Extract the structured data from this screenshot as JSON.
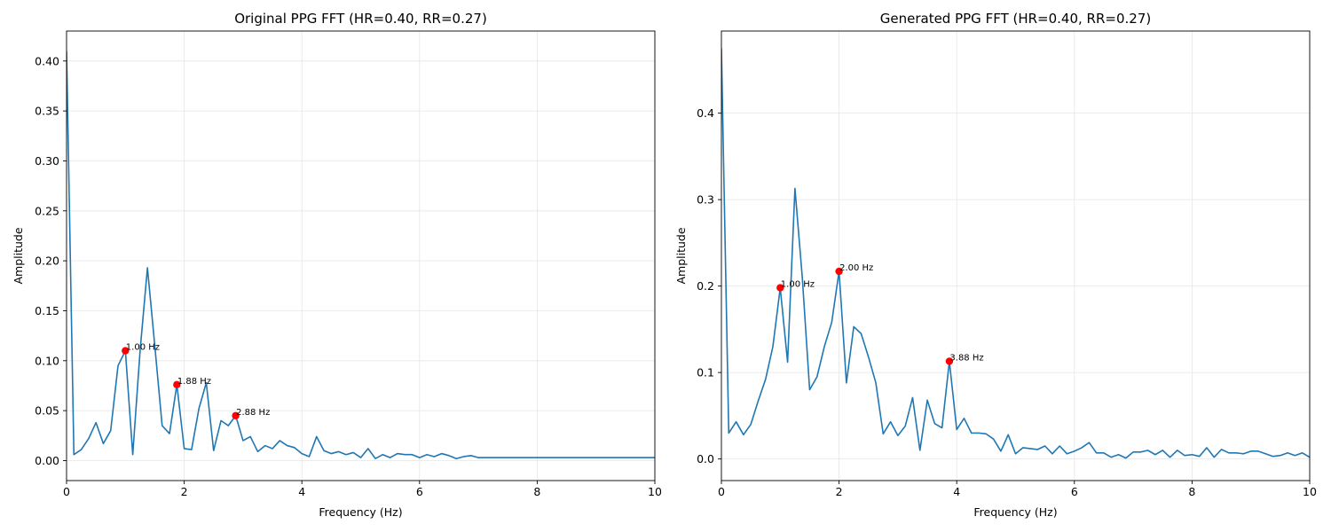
{
  "chart_data": [
    {
      "type": "line",
      "title": "Original PPG FFT (HR=0.40, RR=0.27)",
      "xlabel": "Frequency (Hz)",
      "ylabel": "Amplitude",
      "xlim": [
        0,
        10
      ],
      "ylim": [
        -0.02,
        0.43
      ],
      "xticks": [
        0,
        2,
        4,
        6,
        8,
        10
      ],
      "xtick_labels": [
        "0",
        "2",
        "4",
        "6",
        "8",
        "10"
      ],
      "yticks": [
        0.0,
        0.05,
        0.1,
        0.15,
        0.2,
        0.25,
        0.3,
        0.35,
        0.4
      ],
      "ytick_labels": [
        "0.00",
        "0.05",
        "0.10",
        "0.15",
        "0.20",
        "0.25",
        "0.30",
        "0.35",
        "0.40"
      ],
      "grid": true,
      "line_color": "#1f77b4",
      "marker_color": "#ff0000",
      "series": [
        {
          "x": [
            0,
            0.125,
            0.25,
            0.375,
            0.5,
            0.625,
            0.75,
            0.875,
            1.0,
            1.125,
            1.25,
            1.375,
            1.5,
            1.625,
            1.75,
            1.875,
            2.0,
            2.125,
            2.25,
            2.375,
            2.5,
            2.625,
            2.75,
            2.875,
            3.0,
            3.125,
            3.25,
            3.375,
            3.5,
            3.625,
            3.75,
            3.875,
            4.0,
            4.125,
            4.25,
            4.375,
            4.5,
            4.625,
            4.75,
            4.875,
            5.0,
            5.125,
            5.25,
            5.375,
            5.5,
            5.625,
            5.75,
            5.875,
            6.0,
            6.125,
            6.25,
            6.375,
            6.5,
            6.625,
            6.75,
            6.875,
            7.0,
            7.25,
            7.5,
            7.75,
            8.0,
            8.25,
            8.5,
            8.75,
            9.0,
            9.25,
            9.5,
            9.75,
            10.0
          ],
          "y": [
            0.41,
            0.006,
            0.011,
            0.022,
            0.038,
            0.017,
            0.03,
            0.095,
            0.11,
            0.006,
            0.11,
            0.193,
            0.115,
            0.035,
            0.027,
            0.076,
            0.012,
            0.011,
            0.052,
            0.078,
            0.01,
            0.04,
            0.035,
            0.045,
            0.02,
            0.024,
            0.009,
            0.015,
            0.012,
            0.02,
            0.015,
            0.013,
            0.007,
            0.004,
            0.024,
            0.01,
            0.007,
            0.009,
            0.006,
            0.008,
            0.003,
            0.012,
            0.002,
            0.006,
            0.003,
            0.007,
            0.006,
            0.006,
            0.003,
            0.006,
            0.004,
            0.007,
            0.005,
            0.002,
            0.004,
            0.005,
            0.003,
            0.003,
            0.003,
            0.003,
            0.003,
            0.003,
            0.003,
            0.003,
            0.003,
            0.003,
            0.003,
            0.003,
            0.003
          ]
        }
      ],
      "peaks": [
        {
          "x": 1.0,
          "y": 0.11,
          "label": "1.00 Hz"
        },
        {
          "x": 1.875,
          "y": 0.076,
          "label": "1.88 Hz"
        },
        {
          "x": 2.875,
          "y": 0.045,
          "label": "2.88 Hz"
        }
      ]
    },
    {
      "type": "line",
      "title": "Generated PPG FFT (HR=0.40, RR=0.27)",
      "xlabel": "Frequency (Hz)",
      "ylabel": "Amplitude",
      "xlim": [
        0,
        10
      ],
      "ylim": [
        -0.025,
        0.495
      ],
      "xticks": [
        0,
        2,
        4,
        6,
        8,
        10
      ],
      "xtick_labels": [
        "0",
        "2",
        "4",
        "6",
        "8",
        "10"
      ],
      "yticks": [
        0.0,
        0.1,
        0.2,
        0.3,
        0.4
      ],
      "ytick_labels": [
        "0.0",
        "0.1",
        "0.2",
        "0.3",
        "0.4"
      ],
      "grid": true,
      "line_color": "#1f77b4",
      "marker_color": "#ff0000",
      "series": [
        {
          "x": [
            0,
            0.125,
            0.25,
            0.375,
            0.5,
            0.625,
            0.75,
            0.875,
            1.0,
            1.125,
            1.25,
            1.375,
            1.5,
            1.625,
            1.75,
            1.875,
            2.0,
            2.125,
            2.25,
            2.375,
            2.5,
            2.625,
            2.75,
            2.875,
            3.0,
            3.125,
            3.25,
            3.375,
            3.5,
            3.625,
            3.75,
            3.875,
            4.0,
            4.125,
            4.25,
            4.375,
            4.5,
            4.625,
            4.75,
            4.875,
            5.0,
            5.125,
            5.25,
            5.375,
            5.5,
            5.625,
            5.75,
            5.875,
            6.0,
            6.125,
            6.25,
            6.375,
            6.5,
            6.625,
            6.75,
            6.875,
            7.0,
            7.125,
            7.25,
            7.375,
            7.5,
            7.625,
            7.75,
            7.875,
            8.0,
            8.125,
            8.25,
            8.375,
            8.5,
            8.625,
            8.75,
            8.875,
            9.0,
            9.125,
            9.25,
            9.375,
            9.5,
            9.625,
            9.75,
            9.875,
            10.0
          ],
          "y": [
            0.475,
            0.03,
            0.043,
            0.028,
            0.04,
            0.067,
            0.092,
            0.13,
            0.198,
            0.112,
            0.313,
            0.21,
            0.08,
            0.095,
            0.13,
            0.158,
            0.217,
            0.088,
            0.153,
            0.145,
            0.118,
            0.088,
            0.029,
            0.043,
            0.027,
            0.038,
            0.071,
            0.01,
            0.068,
            0.041,
            0.036,
            0.113,
            0.034,
            0.047,
            0.03,
            0.03,
            0.029,
            0.023,
            0.009,
            0.028,
            0.006,
            0.013,
            0.012,
            0.011,
            0.015,
            0.006,
            0.015,
            0.006,
            0.009,
            0.013,
            0.019,
            0.007,
            0.007,
            0.002,
            0.005,
            0.001,
            0.008,
            0.008,
            0.01,
            0.005,
            0.01,
            0.002,
            0.01,
            0.004,
            0.005,
            0.003,
            0.013,
            0.002,
            0.011,
            0.007,
            0.007,
            0.006,
            0.009,
            0.009,
            0.006,
            0.003,
            0.004,
            0.007,
            0.004,
            0.007,
            0.002
          ]
        }
      ],
      "peaks": [
        {
          "x": 1.0,
          "y": 0.198,
          "label": "1.00 Hz"
        },
        {
          "x": 2.0,
          "y": 0.217,
          "label": "2.00 Hz"
        },
        {
          "x": 3.875,
          "y": 0.113,
          "label": "3.88 Hz"
        }
      ]
    }
  ]
}
